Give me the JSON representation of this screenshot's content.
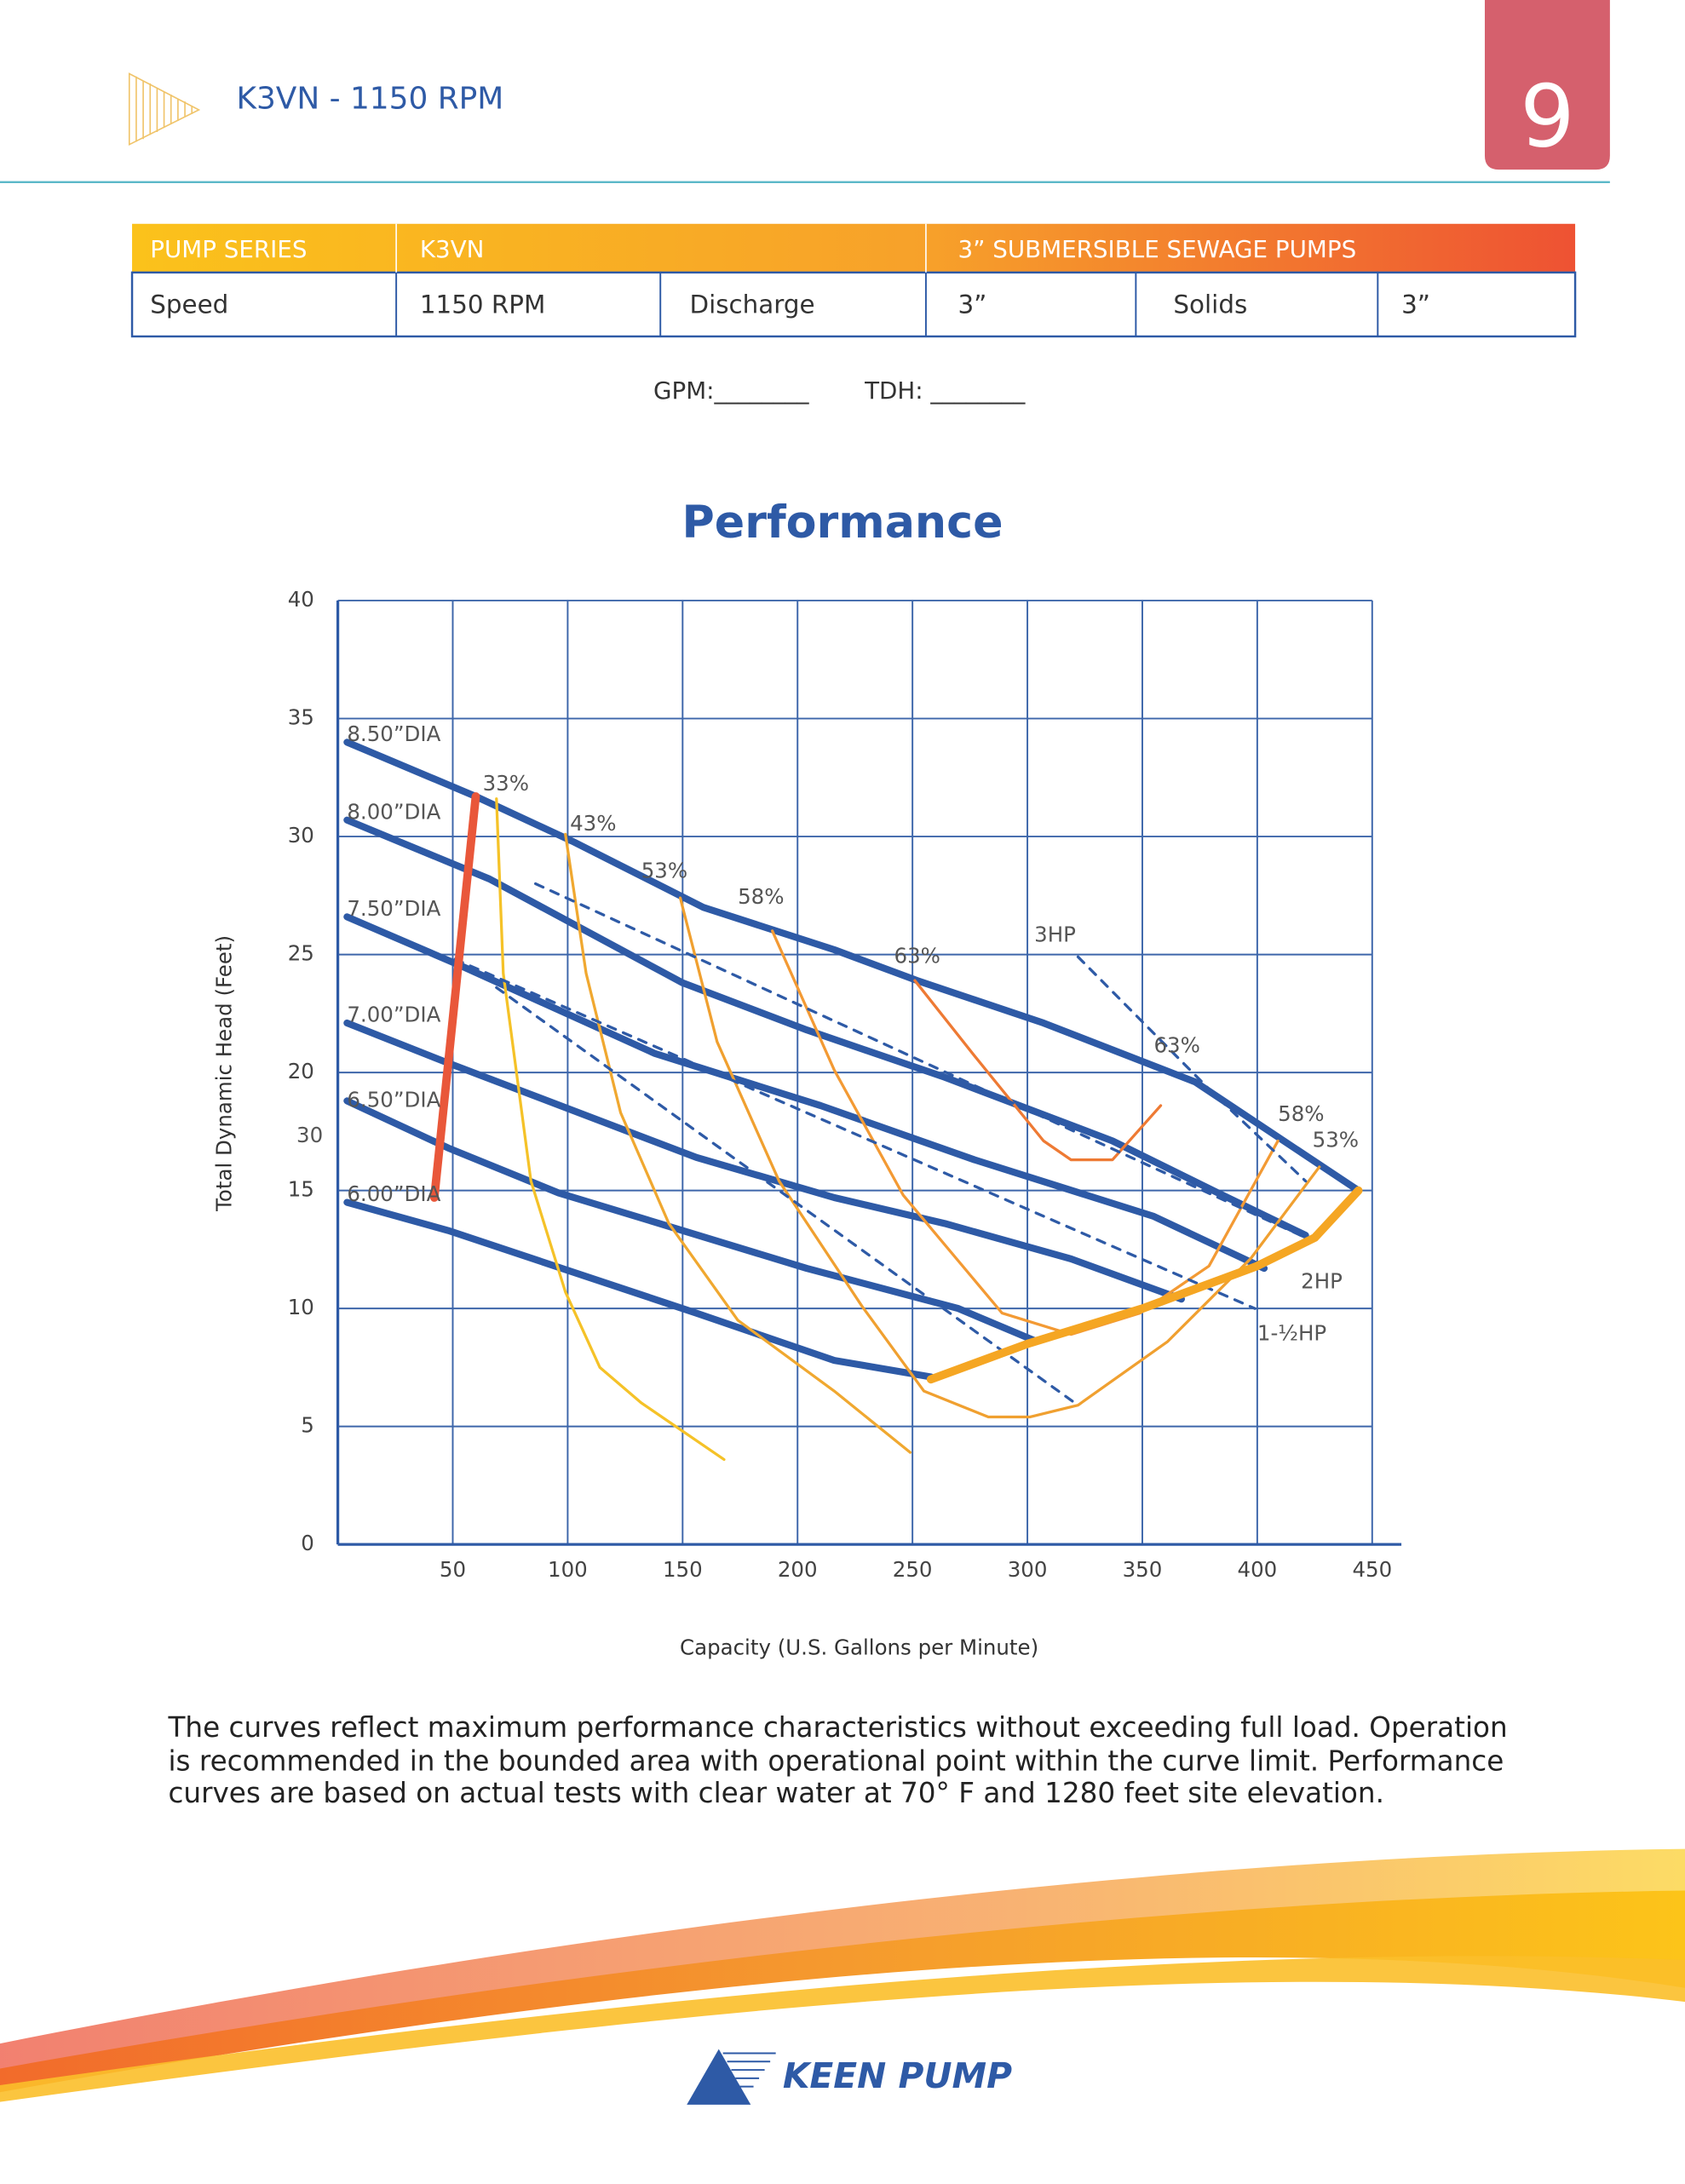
{
  "header": {
    "title": "K3VN - 1150 RPM",
    "page_number": "9"
  },
  "table": {
    "rows": [
      [
        "PUMP SERIES",
        "K3VN",
        "3” SUBMERSIBLE SEWAGE PUMPS"
      ],
      [
        "Speed",
        "1150 RPM",
        "Discharge",
        "3”",
        "Solids",
        "3”"
      ]
    ]
  },
  "form": {
    "fields": [
      "GPM:________",
      "TDH: ________"
    ]
  },
  "chart_data": {
    "type": "line",
    "title": "Performance",
    "x_label": "Capacity (U.S. Gallons per Minute)",
    "y_label": "Total Dynamic Head (Feet)",
    "xlim": [
      0,
      450
    ],
    "ylim": [
      0,
      40
    ],
    "xticks": [
      50,
      100,
      150,
      200,
      250,
      300,
      350,
      400,
      450
    ],
    "yticks": [
      0,
      5,
      10,
      15,
      20,
      25,
      30,
      35,
      40
    ],
    "grid": true,
    "series": [
      {
        "color": "#2e5aa6",
        "width": 5,
        "x": [
          4,
          60,
          102,
          159,
          216,
          252,
          307,
          373,
          444
        ],
        "values": [
          34.0,
          31.7,
          29.8,
          27.0,
          25.2,
          23.9,
          22.1,
          19.6,
          15.0
        ]
      },
      {
        "color": "#2e5aa6",
        "width": 5,
        "x": [
          4,
          66,
          150,
          204,
          264,
          337,
          385,
          421
        ],
        "values": [
          30.7,
          28.2,
          23.8,
          21.8,
          19.8,
          17.1,
          14.8,
          13.1
        ]
      },
      {
        "color": "#2e5aa6",
        "width": 5,
        "x": [
          4,
          54,
          138,
          210,
          277,
          355,
          403
        ],
        "values": [
          26.6,
          24.5,
          20.8,
          18.6,
          16.3,
          13.9,
          11.7
        ]
      },
      {
        "color": "#2e5aa6",
        "width": 5,
        "x": [
          4,
          48,
          156,
          216,
          264,
          319,
          367
        ],
        "values": [
          22.1,
          20.4,
          16.4,
          14.7,
          13.6,
          12.1,
          10.4
        ]
      },
      {
        "color": "#2e5aa6",
        "width": 5,
        "x": [
          4,
          48,
          96,
          150,
          204,
          270,
          304
        ],
        "values": [
          18.8,
          16.8,
          14.9,
          13.3,
          11.7,
          10.0,
          8.6
        ]
      },
      {
        "color": "#2e5aa6",
        "width": 5,
        "x": [
          4,
          48,
          156,
          216,
          258
        ],
        "values": [
          14.5,
          13.3,
          9.8,
          7.8,
          7.1
        ]
      },
      {
        "color": "#f5c228",
        "width": 2,
        "x": [
          69,
          72,
          84,
          99,
          114,
          132,
          168
        ],
        "values": [
          31.6,
          24.2,
          15.4,
          10.7,
          7.5,
          6.0,
          3.6
        ]
      },
      {
        "color": "#f0a830",
        "width": 2,
        "x": [
          99,
          108,
          123,
          144,
          174,
          216,
          249
        ],
        "values": [
          30.1,
          24.2,
          18.3,
          13.6,
          9.5,
          6.5,
          3.9
        ]
      },
      {
        "color": "#f0a030",
        "width": 2,
        "x": [
          149,
          165,
          192,
          228,
          255,
          283,
          301,
          322,
          361,
          397,
          427
        ],
        "values": [
          27.4,
          21.3,
          15.4,
          10.1,
          6.5,
          5.4,
          5.4,
          5.9,
          8.6,
          12.1,
          16.0
        ]
      },
      {
        "color": "#f39a34",
        "width": 2,
        "x": [
          189,
          216,
          246,
          289,
          319,
          349,
          379,
          409
        ],
        "values": [
          26.0,
          20.1,
          14.8,
          9.8,
          8.9,
          9.8,
          11.8,
          17.1
        ]
      },
      {
        "color": "#ee7a34",
        "width": 2,
        "x": [
          251,
          277,
          307,
          319,
          337,
          358
        ],
        "values": [
          23.9,
          20.7,
          17.1,
          16.3,
          16.3,
          18.6
        ]
      },
      {
        "color": "#2e5aa6",
        "width": 2,
        "dash": true,
        "x": [
          322,
          380,
          421
        ],
        "values": [
          24.9,
          19.2,
          15.4
        ]
      },
      {
        "color": "#2e5aa6",
        "width": 2,
        "dash": true,
        "x": [
          86,
          421
        ],
        "values": [
          28.0,
          13.0
        ]
      },
      {
        "color": "#2e5aa6",
        "width": 2,
        "dash": true,
        "x": [
          51,
          399
        ],
        "values": [
          24.8,
          10.0
        ]
      },
      {
        "color": "#2e5aa6",
        "width": 2,
        "dash": true,
        "x": [
          69,
          322
        ],
        "values": [
          23.6,
          5.9
        ]
      },
      {
        "color": "#f5a623",
        "width": 6,
        "x": [
          258,
          300,
          350,
          400,
          425,
          444
        ],
        "values": [
          7.0,
          8.5,
          10.0,
          11.8,
          13.0,
          15.0
        ]
      },
      {
        "color": "#e9573a",
        "width": 6,
        "x": [
          60,
          42
        ],
        "values": [
          31.7,
          14.7
        ]
      }
    ],
    "annotations": [
      {
        "text": "8.50”DIA",
        "x": 4,
        "y": 34.3
      },
      {
        "text": "8.00”DIA",
        "x": 4,
        "y": 31.0
      },
      {
        "text": "7.50”DIA",
        "x": 4,
        "y": 26.9
      },
      {
        "text": "7.00”DIA",
        "x": 4,
        "y": 22.4
      },
      {
        "text": "6.50”DIA",
        "x": 4,
        "y": 18.8
      },
      {
        "text": "6.00”DIA",
        "x": 4,
        "y": 14.8
      },
      {
        "text": "33%",
        "x": 63,
        "y": 32.2
      },
      {
        "text": "43%",
        "x": 101,
        "y": 30.5
      },
      {
        "text": "53%",
        "x": 132,
        "y": 28.5
      },
      {
        "text": "58%",
        "x": 174,
        "y": 27.4
      },
      {
        "text": "63%",
        "x": 242,
        "y": 24.9
      },
      {
        "text": "3HP",
        "x": 303,
        "y": 25.8
      },
      {
        "text": "63%",
        "x": 355,
        "y": 21.1
      },
      {
        "text": "58%",
        "x": 409,
        "y": 18.2
      },
      {
        "text": "53%",
        "x": 424,
        "y": 17.1
      },
      {
        "text": "2HP",
        "x": 419,
        "y": 11.1
      },
      {
        "text": "1-½HP",
        "x": 400,
        "y": 8.9
      },
      {
        "text": "30",
        "x": -18,
        "y": 17.3
      }
    ]
  },
  "footer": {
    "lines": [
      "The curves reflect maximum performance characteristics without exceeding full load. Operation",
      "is recommended in the bounded area with operational point within the curve limit. Performance",
      "curves are based on actual tests with clear water at 70° F and 1280 feet site elevation."
    ],
    "brand": "KEEN PUMP"
  }
}
